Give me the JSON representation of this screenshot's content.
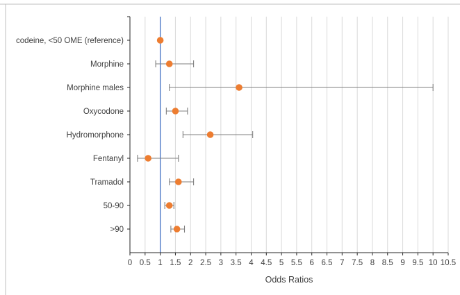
{
  "chart_data": {
    "type": "scatter",
    "subtype": "forest-plot",
    "title": "",
    "xlabel": "Odds Ratios",
    "ylabel": "",
    "xlim": [
      0,
      10.5
    ],
    "x_ticks": [
      "0",
      "0.5",
      "1",
      "1.5",
      "2",
      "2.5",
      "3",
      "3.5",
      "4",
      "4.5",
      "5",
      "5.5",
      "6",
      "6.5",
      "7",
      "7.5",
      "8",
      "8.5",
      "9",
      "9.5",
      "10",
      "10.5"
    ],
    "x_grid": true,
    "reference_line": 1,
    "categories": [
      "codeine, <50 OME (reference)",
      "Morphine",
      "Morphine males",
      "Oxycodone",
      "Hydromorphone",
      "Fentanyl",
      "Tramadol",
      "50-90",
      ">90"
    ],
    "series": [
      {
        "odds_ratio": [
          1.0,
          1.3,
          3.6,
          1.5,
          2.65,
          0.6,
          1.6,
          1.3,
          1.55
        ],
        "ci_lower": [
          null,
          0.85,
          1.3,
          1.2,
          1.75,
          0.25,
          1.3,
          1.15,
          1.35
        ],
        "ci_upper": [
          null,
          2.1,
          10.0,
          1.9,
          4.05,
          1.6,
          2.1,
          1.45,
          1.8
        ]
      }
    ],
    "colors": {
      "point": "#ed7d31",
      "error_bar": "#7f7f7f",
      "reference_line": "#4472c4",
      "grid": "#d9d9d9"
    }
  }
}
